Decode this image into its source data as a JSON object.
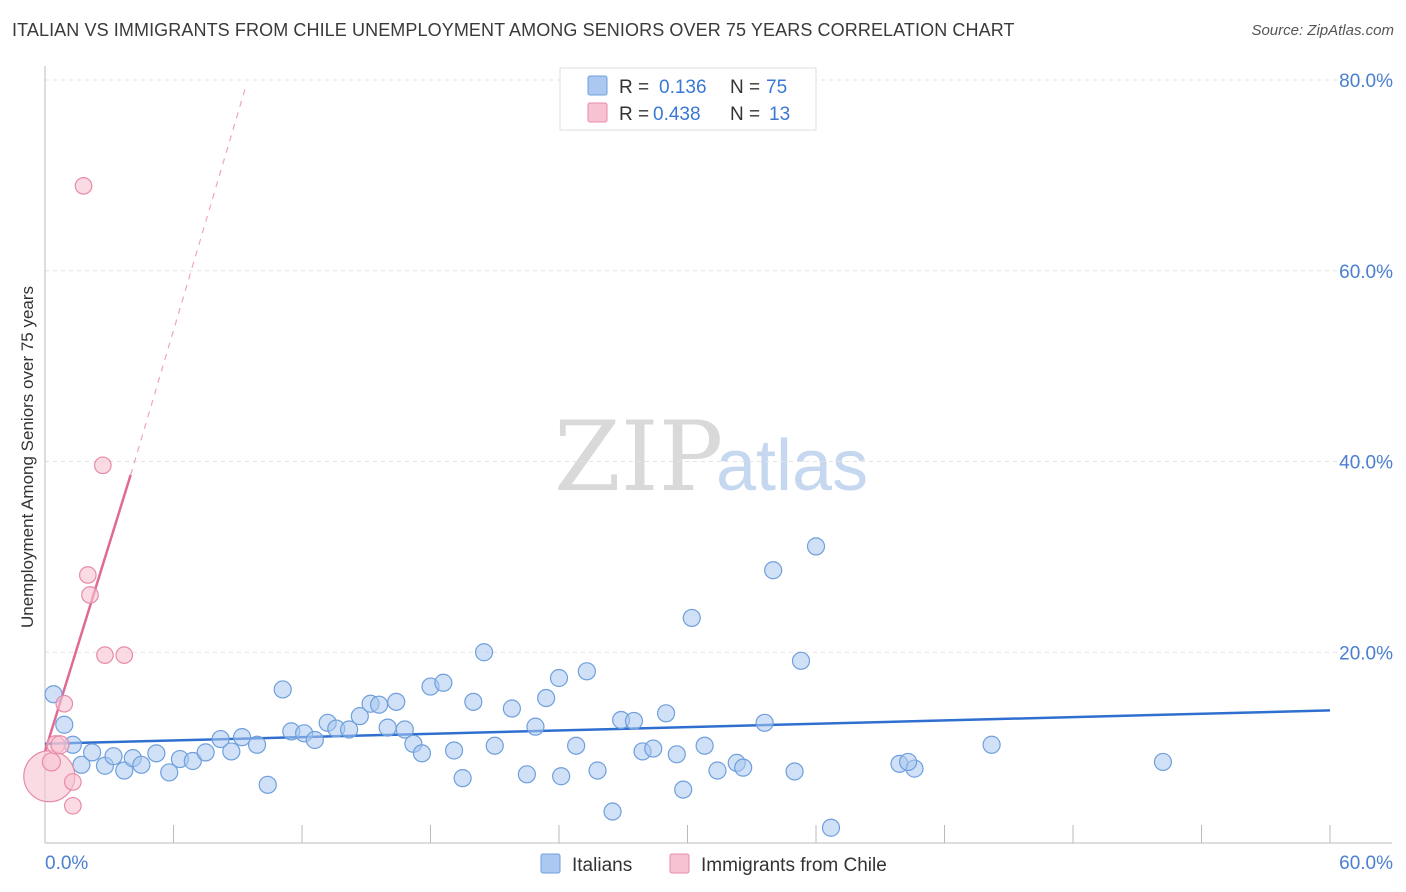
{
  "header": {
    "title": "ITALIAN VS IMMIGRANTS FROM CHILE UNEMPLOYMENT AMONG SENIORS OVER 75 YEARS CORRELATION CHART",
    "source": "Source: ZipAtlas.com"
  },
  "watermark": {
    "zip": "ZIP",
    "atlas": "atlas"
  },
  "colors": {
    "italians_fill": "#aac8f0",
    "italians_stroke": "#6f9fdc",
    "italians_line": "#2f6fcf",
    "chile_fill": "#f7c3d2",
    "chile_stroke": "#e88aa8",
    "chile_line": "#e06a93",
    "tick_text": "#4a7fd0",
    "grid": "#e3e3e3"
  },
  "legend": {
    "rows": [
      {
        "r_label": "R =",
        "r_value": "0.136",
        "n_label": "N =",
        "n_value": "75"
      },
      {
        "r_label": "R =",
        "r_value": "0.438",
        "n_label": "N =",
        "n_value": "13"
      }
    ]
  },
  "chart_data": {
    "type": "scatter",
    "title": "ITALIAN VS IMMIGRANTS FROM CHILE UNEMPLOYMENT AMONG SENIORS OVER 75 YEARS CORRELATION CHART",
    "xlabel": "",
    "ylabel": "Unemployment Among Seniors over 75 years",
    "xlim": [
      0,
      60
    ],
    "ylim": [
      0,
      80
    ],
    "x_tick_labels": [
      "0.0%",
      "60.0%"
    ],
    "y_ticks": [
      20,
      40,
      60,
      80
    ],
    "y_tick_labels": [
      "20.0%",
      "40.0%",
      "60.0%",
      "80.0%"
    ],
    "grid": true,
    "series": [
      {
        "name": "Italians",
        "points": [
          [
            0.4,
            15.6
          ],
          [
            0.9,
            12.4
          ],
          [
            1.3,
            10.3
          ],
          [
            1.7,
            8.2
          ],
          [
            2.2,
            9.5
          ],
          [
            2.8,
            8.1
          ],
          [
            3.2,
            9.1
          ],
          [
            3.7,
            7.6
          ],
          [
            4.1,
            8.9
          ],
          [
            4.5,
            8.2
          ],
          [
            5.2,
            9.4
          ],
          [
            5.8,
            7.4
          ],
          [
            6.3,
            8.8
          ],
          [
            6.9,
            8.6
          ],
          [
            7.5,
            9.5
          ],
          [
            8.2,
            10.9
          ],
          [
            8.7,
            9.6
          ],
          [
            9.2,
            11.1
          ],
          [
            9.9,
            10.3
          ],
          [
            10.4,
            6.1
          ],
          [
            11.1,
            16.1
          ],
          [
            11.5,
            11.7
          ],
          [
            12.1,
            11.5
          ],
          [
            12.6,
            10.8
          ],
          [
            13.2,
            12.6
          ],
          [
            13.6,
            12.0
          ],
          [
            14.2,
            11.9
          ],
          [
            14.7,
            13.3
          ],
          [
            15.2,
            14.6
          ],
          [
            15.6,
            14.5
          ],
          [
            16.0,
            12.1
          ],
          [
            16.4,
            14.8
          ],
          [
            16.8,
            11.9
          ],
          [
            17.2,
            10.4
          ],
          [
            17.6,
            9.4
          ],
          [
            18.0,
            16.4
          ],
          [
            18.6,
            16.8
          ],
          [
            19.1,
            9.7
          ],
          [
            19.5,
            6.8
          ],
          [
            20.0,
            14.8
          ],
          [
            20.5,
            20.0
          ],
          [
            21.0,
            10.2
          ],
          [
            21.8,
            14.1
          ],
          [
            22.5,
            7.2
          ],
          [
            22.9,
            12.2
          ],
          [
            23.4,
            15.2
          ],
          [
            24.0,
            17.3
          ],
          [
            24.1,
            7.0
          ],
          [
            24.8,
            10.2
          ],
          [
            25.3,
            18.0
          ],
          [
            25.8,
            7.6
          ],
          [
            26.5,
            3.3
          ],
          [
            26.9,
            12.9
          ],
          [
            27.5,
            12.8
          ],
          [
            27.9,
            9.6
          ],
          [
            28.4,
            9.9
          ],
          [
            29.0,
            13.6
          ],
          [
            29.5,
            9.3
          ],
          [
            29.8,
            5.6
          ],
          [
            30.2,
            23.6
          ],
          [
            30.8,
            10.2
          ],
          [
            31.4,
            7.6
          ],
          [
            32.3,
            8.4
          ],
          [
            32.6,
            7.9
          ],
          [
            33.6,
            12.6
          ],
          [
            34.0,
            28.6
          ],
          [
            35.0,
            7.5
          ],
          [
            35.3,
            19.1
          ],
          [
            36.0,
            31.1
          ],
          [
            36.7,
            1.6
          ],
          [
            39.9,
            8.3
          ],
          [
            40.6,
            7.8
          ],
          [
            44.2,
            10.3
          ],
          [
            52.2,
            8.5
          ],
          [
            40.3,
            8.5
          ]
        ],
        "trend": {
          "x": [
            0,
            60
          ],
          "y": [
            10.4,
            13.9
          ]
        }
      },
      {
        "name": "Immigrants from Chile",
        "points": [
          [
            0.2,
            7.0
          ],
          [
            0.3,
            8.5
          ],
          [
            0.5,
            10.3
          ],
          [
            0.7,
            10.3
          ],
          [
            0.9,
            14.6
          ],
          [
            1.3,
            3.9
          ],
          [
            1.3,
            6.4
          ],
          [
            1.8,
            68.9
          ],
          [
            2.0,
            28.1
          ],
          [
            2.1,
            26.0
          ],
          [
            2.7,
            39.6
          ],
          [
            2.8,
            19.7
          ],
          [
            3.7,
            19.7
          ]
        ],
        "sizes": [
          34,
          12,
          12,
          12,
          11,
          11,
          11,
          11,
          11,
          11,
          11,
          11,
          11
        ],
        "trend_solid": {
          "x": [
            0,
            4
          ],
          "y": [
            9.6,
            38.6
          ]
        },
        "trend_dashed": {
          "x": [
            4,
            9.4
          ],
          "y": [
            38.6,
            79.5
          ]
        }
      }
    ]
  },
  "bottom_legend": {
    "items": [
      {
        "label": "Italians"
      },
      {
        "label": "Immigrants from Chile"
      }
    ]
  }
}
